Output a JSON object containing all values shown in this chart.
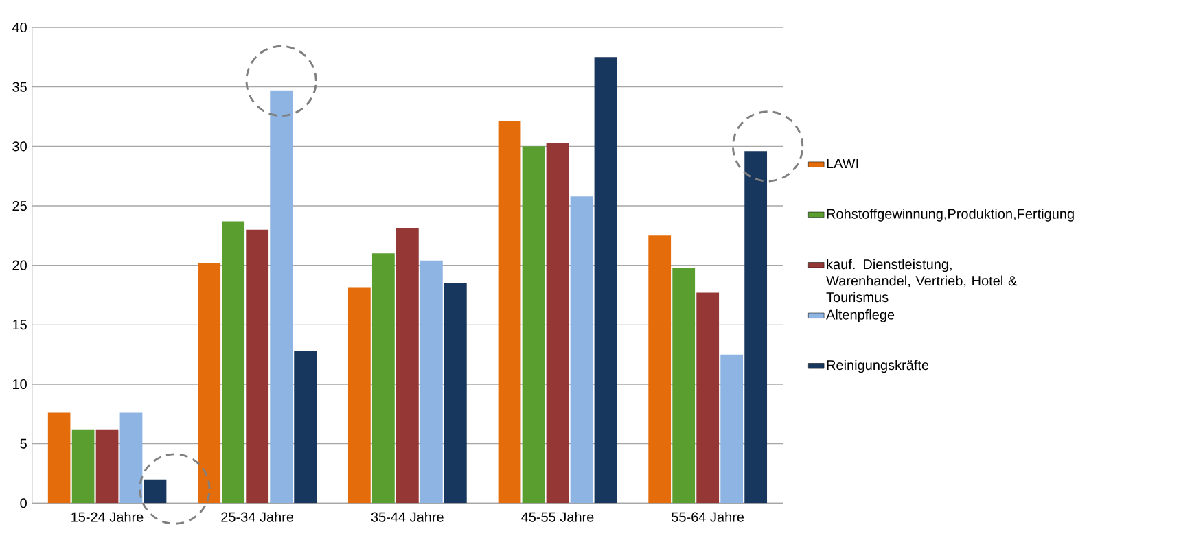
{
  "chart_data": {
    "type": "bar",
    "categories": [
      "15-24 Jahre",
      "25-34 Jahre",
      "35-44 Jahre",
      "45-55 Jahre",
      "55-64 Jahre"
    ],
    "series": [
      {
        "name": "LAWI",
        "color": "#e46c0a",
        "values": [
          7.6,
          20.2,
          18.1,
          32.1,
          22.5
        ]
      },
      {
        "name": "Rohstoffgewinnung,Produktion,Fertigung",
        "color": "#5a9e2f",
        "values": [
          6.2,
          23.7,
          21.0,
          30.0,
          19.8
        ]
      },
      {
        "name": "kauf. Dienstleistung, Warenhandel, Vertrieb, Hotel & Tourismus",
        "color": "#953735",
        "values": [
          6.2,
          23.0,
          23.1,
          30.3,
          17.7
        ]
      },
      {
        "name": "Altenpflege",
        "color": "#8eb4e3",
        "values": [
          7.6,
          34.7,
          20.4,
          25.8,
          12.5
        ]
      },
      {
        "name": "Reinigungskräfte",
        "color": "#17375e",
        "values": [
          2.0,
          12.8,
          18.5,
          37.5,
          29.6
        ]
      }
    ],
    "ylim": [
      0,
      40
    ],
    "yticks": [
      0,
      5,
      10,
      15,
      20,
      25,
      30,
      35,
      40
    ],
    "grid": "y",
    "legend": "right"
  }
}
